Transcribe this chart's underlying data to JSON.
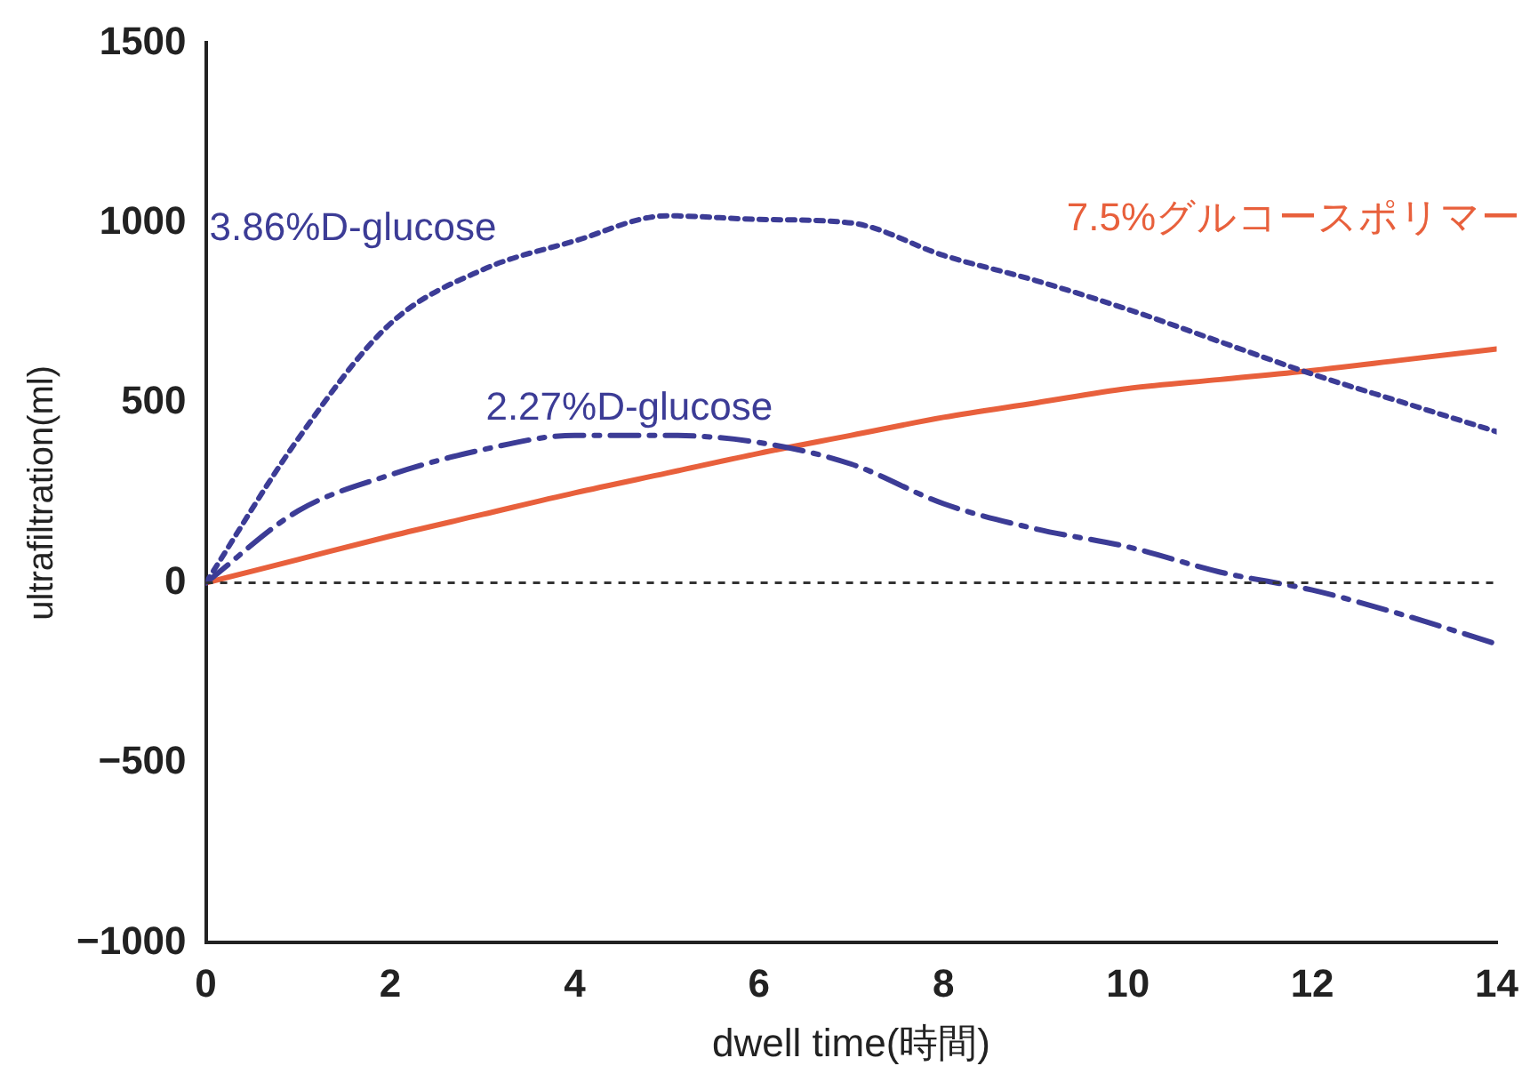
{
  "chart_data": {
    "type": "line",
    "xlabel": "dwell time(時間)",
    "ylabel": "ultrafiltration(ml)",
    "x": [
      0,
      1,
      2,
      3,
      4,
      5,
      6,
      7,
      8,
      9,
      10,
      11,
      12,
      13,
      14
    ],
    "xlim": [
      0,
      14
    ],
    "xticks": [
      0,
      2,
      4,
      6,
      8,
      10,
      12,
      14
    ],
    "ylim": [
      -1000,
      1500
    ],
    "yticks": [
      -1000,
      -500,
      0,
      500,
      1000,
      1500
    ],
    "grid": false,
    "legend": false,
    "marker": "none",
    "ref_lines": [
      {
        "axis": "y",
        "value": 0,
        "color": "#333333",
        "line_style": "dotted"
      }
    ],
    "series": [
      {
        "name": "3.86%D-glucose",
        "color": "#3c3c96",
        "line_style": "dotted",
        "values": [
          0,
          400,
          720,
          870,
          950,
          1020,
          1010,
          1000,
          910,
          840,
          760,
          670,
          580,
          500,
          420
        ]
      },
      {
        "name": "2.27%D-glucose",
        "color": "#3c3c96",
        "line_style": "dashed",
        "values": [
          0,
          200,
          300,
          370,
          410,
          410,
          390,
          330,
          220,
          150,
          100,
          30,
          -20,
          -90,
          -170
        ]
      },
      {
        "name": "7.5%グルコースポリマー",
        "color": "#e8603c",
        "line_style": "solid",
        "values": [
          0,
          65,
          130,
          190,
          250,
          305,
          360,
          410,
          460,
          500,
          540,
          565,
          590,
          620,
          650
        ]
      }
    ]
  }
}
